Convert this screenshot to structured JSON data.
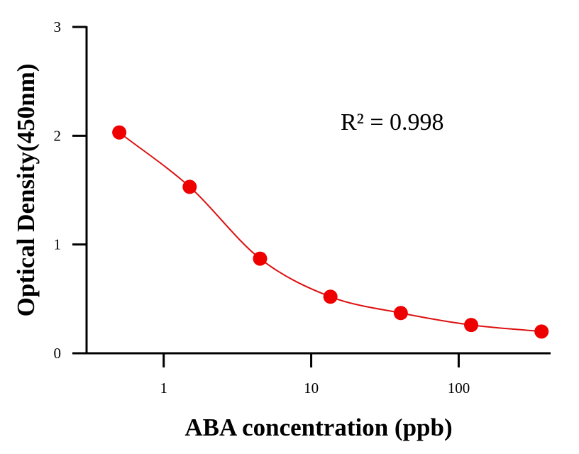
{
  "chart_data": {
    "type": "scatter",
    "title": "",
    "xlabel": "ABA concentration (ppb)",
    "ylabel": "Optical Density(450nm)",
    "x_scale": "log",
    "xlim": [
      0.3,
      420
    ],
    "ylim": [
      0,
      3
    ],
    "x_ticks": [
      1,
      10,
      100
    ],
    "x_tick_labels": [
      "1",
      "10",
      "100"
    ],
    "y_ticks": [
      0,
      1,
      2,
      3
    ],
    "y_tick_labels": [
      "0",
      "1",
      "2",
      "3"
    ],
    "grid": false,
    "annotation": "R² = 0.998",
    "marker_color": "#ee0000",
    "curve_color": "#dd1111",
    "points": [
      {
        "x": 0.5,
        "y": 2.03
      },
      {
        "x": 1.5,
        "y": 1.53
      },
      {
        "x": 4.5,
        "y": 0.87
      },
      {
        "x": 13.5,
        "y": 0.52
      },
      {
        "x": 40.5,
        "y": 0.37
      },
      {
        "x": 121.5,
        "y": 0.26
      },
      {
        "x": 364.5,
        "y": 0.2
      }
    ]
  }
}
